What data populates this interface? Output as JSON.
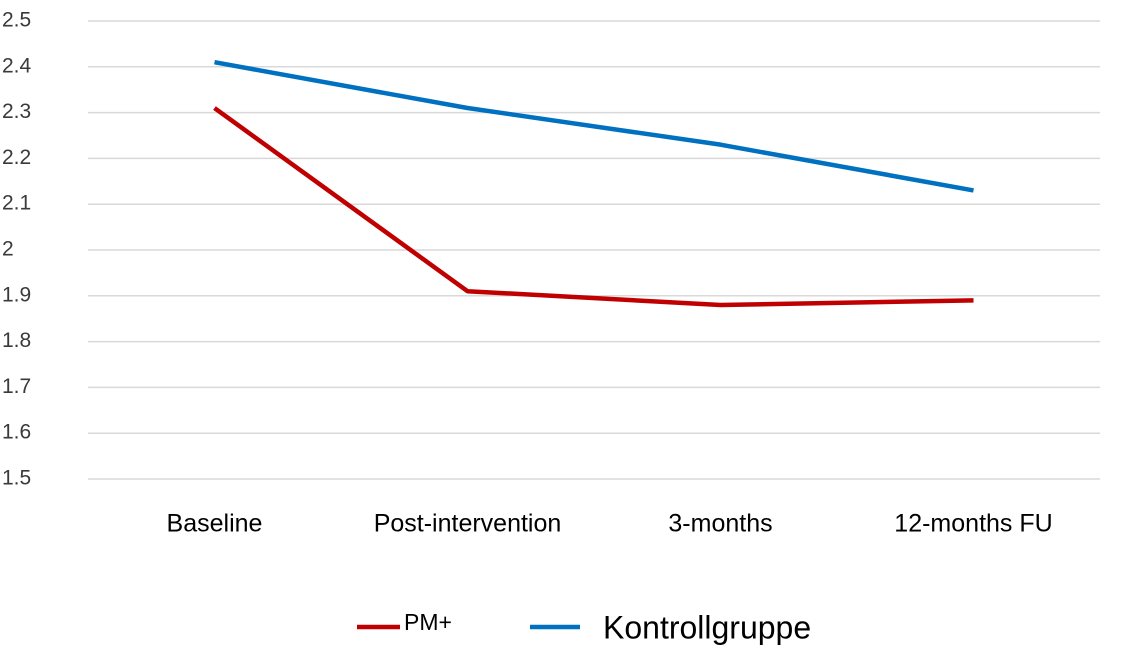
{
  "chart_data": {
    "type": "line",
    "categories": [
      "Baseline",
      "Post-intervention",
      "3-months",
      "12-months FU"
    ],
    "series": [
      {
        "name": "PM+",
        "color": "#c00000",
        "values": [
          2.31,
          1.91,
          1.88,
          1.89
        ]
      },
      {
        "name": "Kontrollgruppe",
        "color": "#0070c0",
        "values": [
          2.41,
          2.31,
          2.23,
          2.13
        ]
      }
    ],
    "ylim": [
      1.5,
      2.5
    ],
    "yticks": [
      1.5,
      1.6,
      1.7,
      1.8,
      1.9,
      2,
      2.1,
      2.2,
      2.3,
      2.4,
      2.5
    ],
    "grid": true,
    "legend": "bottom"
  }
}
